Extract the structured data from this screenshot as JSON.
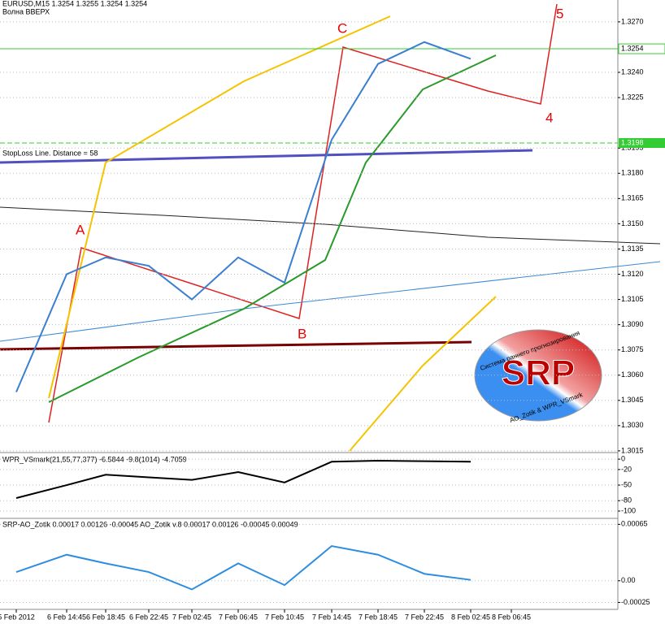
{
  "chart_data": [
    {
      "type": "line",
      "title": "EURUSD,M15  1.3254 1.3255 1.3254 1.3254",
      "subtitle": "Волна ВВЕРХ",
      "annotations": [
        "StopLoss Line. Distance = 58",
        "A",
        "B",
        "C",
        "4",
        "5"
      ],
      "logo": {
        "text": "SRP",
        "top_text": "Система раннего прогнозирования",
        "bottom_text": "AO_Zotik & WPR_VSmark"
      },
      "categories": [
        "5 Feb 2012",
        "6 Feb 14:45",
        "6 Feb 18:45",
        "6 Feb 22:45",
        "7 Feb 02:45",
        "7 Feb 06:45",
        "7 Feb 10:45",
        "7 Feb 14:45",
        "7 Feb 18:45",
        "7 Feb 22:45",
        "8 Feb 02:45",
        "8 Feb 06:45"
      ],
      "values": [
        1.305,
        1.312,
        1.313,
        1.3125,
        1.3105,
        1.313,
        1.3115,
        1.32,
        1.3245,
        1.3258,
        1.3248,
        null
      ],
      "color": "#3a7fd0",
      "current_price": 1.3254,
      "stoploss_price": 1.3198,
      "ylim": [
        1.3014,
        1.3283
      ],
      "yticks": [
        1.3015,
        {
          "value": 1.303,
          "label": "1.3030"
        },
        1.3045,
        {
          "value": 1.306,
          "label": "1.3060"
        },
        1.3075,
        {
          "value": 1.309,
          "label": "1.3090"
        },
        1.3105,
        {
          "value": 1.312,
          "label": "1.3120"
        },
        1.3135,
        {
          "value": 1.315,
          "label": "1.3150"
        },
        1.3165,
        {
          "value": 1.318,
          "label": "1.3180"
        },
        1.3195,
        1.3225,
        {
          "value": 1.324,
          "label": "1.3240"
        },
        {
          "value": 1.327,
          "label": "1.3270"
        }
      ],
      "grid": true
    },
    {
      "type": "line",
      "title": "WPR_VSmark(21,55,77,377) -6.5844 -9.8(1014) -4.7059",
      "values": [
        -75,
        -50,
        -30,
        -35,
        -40,
        -25,
        -45,
        -5,
        -3,
        -4,
        -5,
        null
      ],
      "color": "#000000",
      "ylim": [
        -111,
        8
      ],
      "yticks": [
        0,
        -20,
        -50,
        -80,
        -100
      ],
      "grid": true
    },
    {
      "type": "line",
      "title": "SRP-AO_Zotik 0.00017 0.00126 -0.00045 AO_Zotik v.8 0.00017 0.00126 -0.00045 0.00049",
      "values": [
        0.0001,
        0.0003,
        0.0002,
        0.0001,
        -0.0001,
        0.0002,
        -5e-05,
        0.0004,
        0.0003,
        8e-05,
        1e-05,
        null
      ],
      "color": "#2f8de0",
      "ylim": [
        -0.00033,
        0.0007
      ],
      "yticks": [
        0.00065,
        {
          "value": 0,
          "label": "0.00"
        },
        -0.00025
      ],
      "grid": true
    }
  ]
}
